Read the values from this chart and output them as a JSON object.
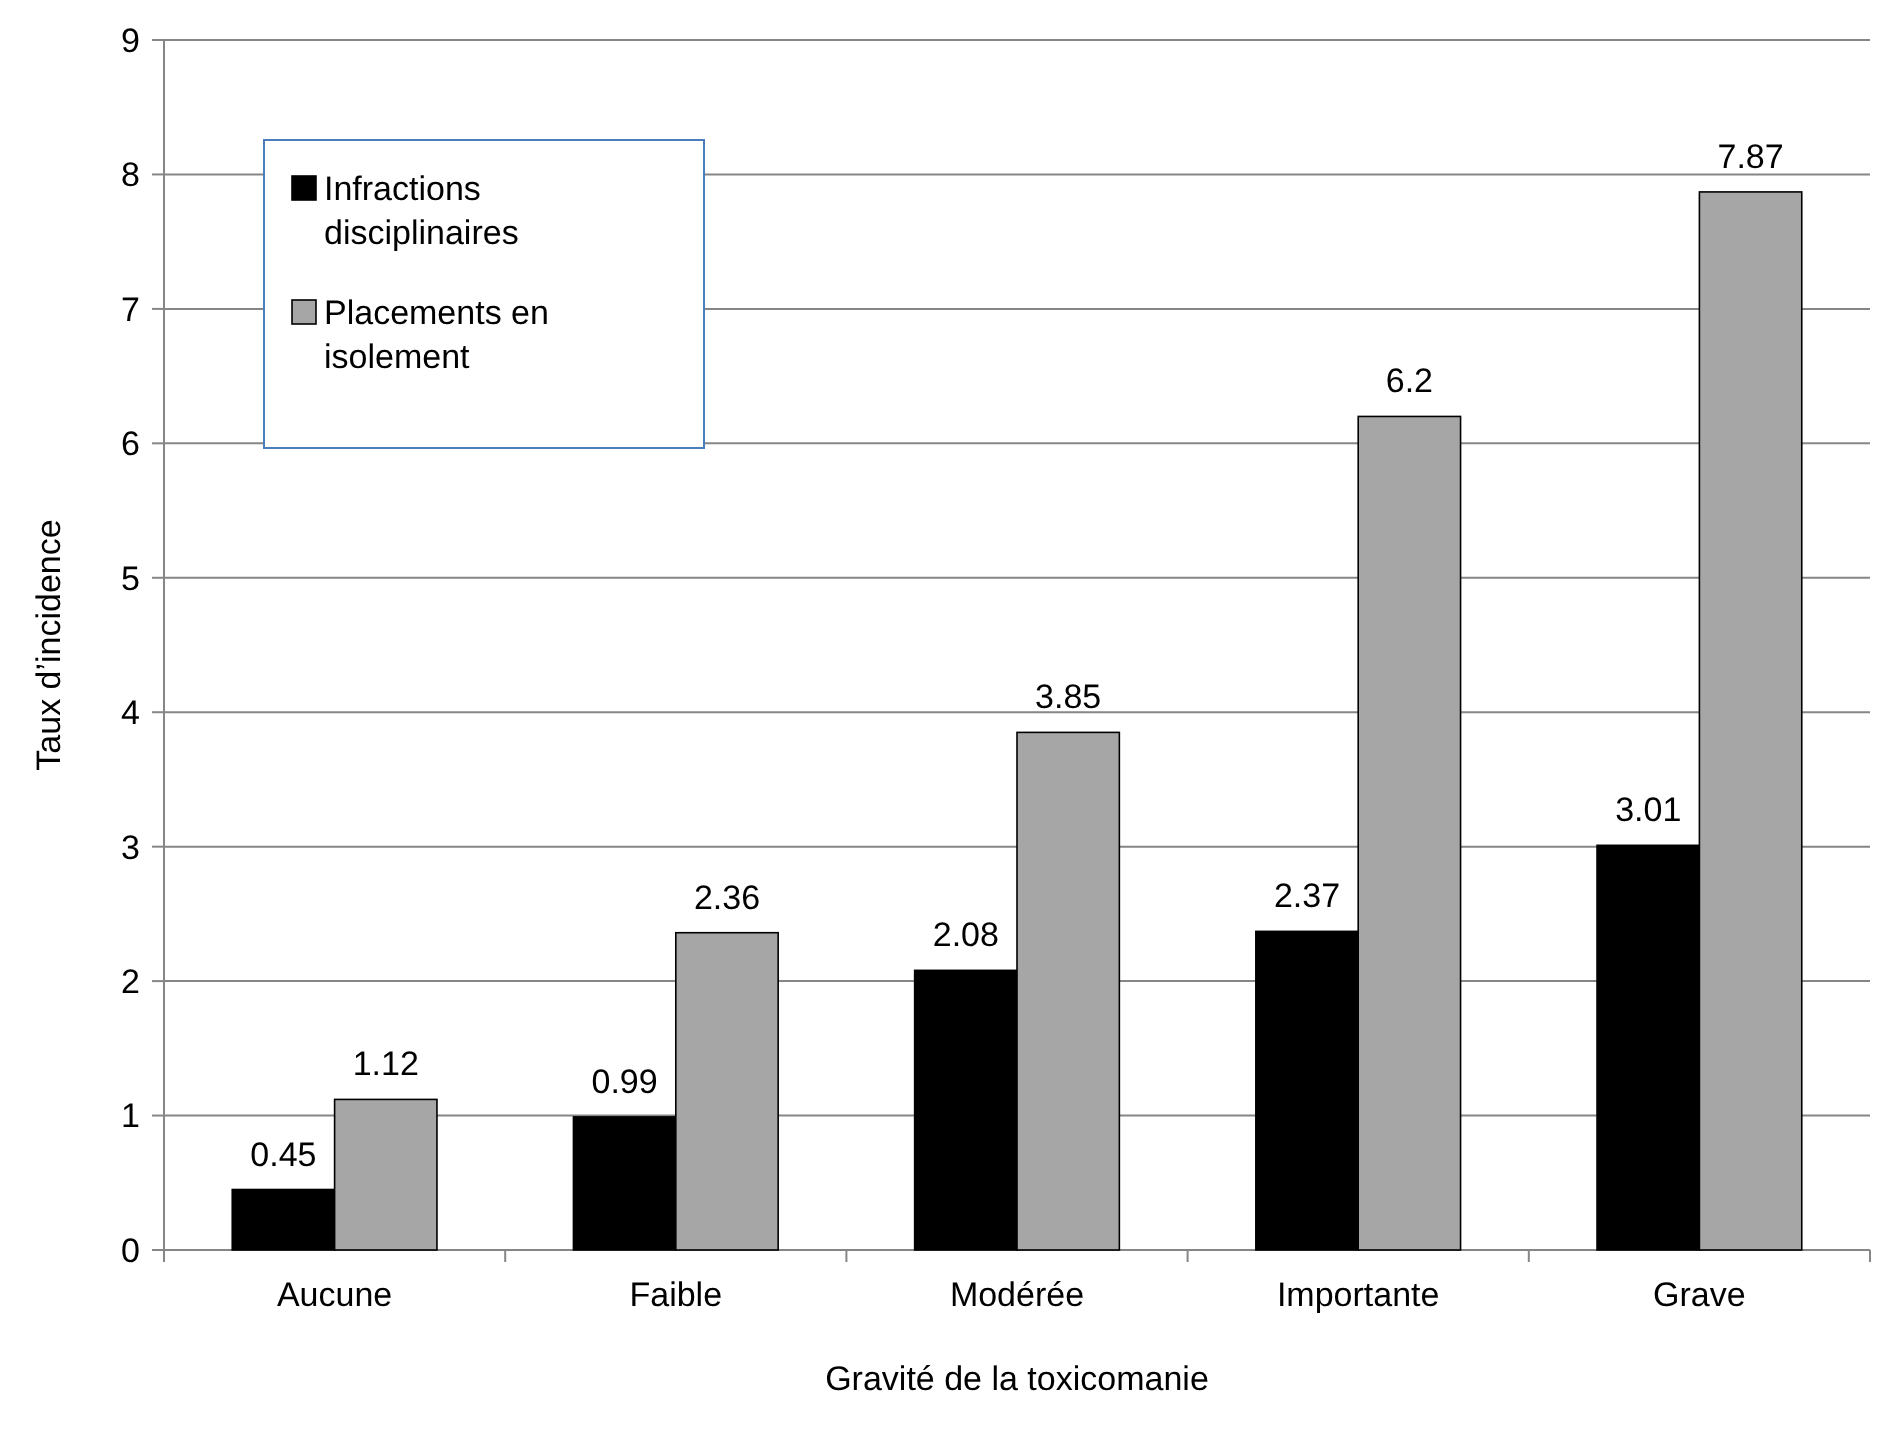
{
  "chart_data": {
    "type": "bar",
    "xlabel": "Gravité de la toxicomanie",
    "ylabel": "Taux d’incidence",
    "categories": [
      "Aucune",
      "Faible",
      "Modérée",
      "Importante",
      "Grave"
    ],
    "series": [
      {
        "name": "Infractions disciplinaires",
        "color": "#000000",
        "values": [
          0.45,
          0.99,
          2.08,
          2.37,
          3.01
        ]
      },
      {
        "name": "Placements en isolement",
        "color": "#a6a6a6",
        "values": [
          1.12,
          2.36,
          3.85,
          6.2,
          7.87
        ]
      }
    ],
    "ylim": [
      0,
      9
    ],
    "yticks": [
      0,
      1,
      2,
      3,
      4,
      5,
      6,
      7,
      8,
      9
    ],
    "grid": "y",
    "legend": "top left",
    "data_labels": true
  }
}
